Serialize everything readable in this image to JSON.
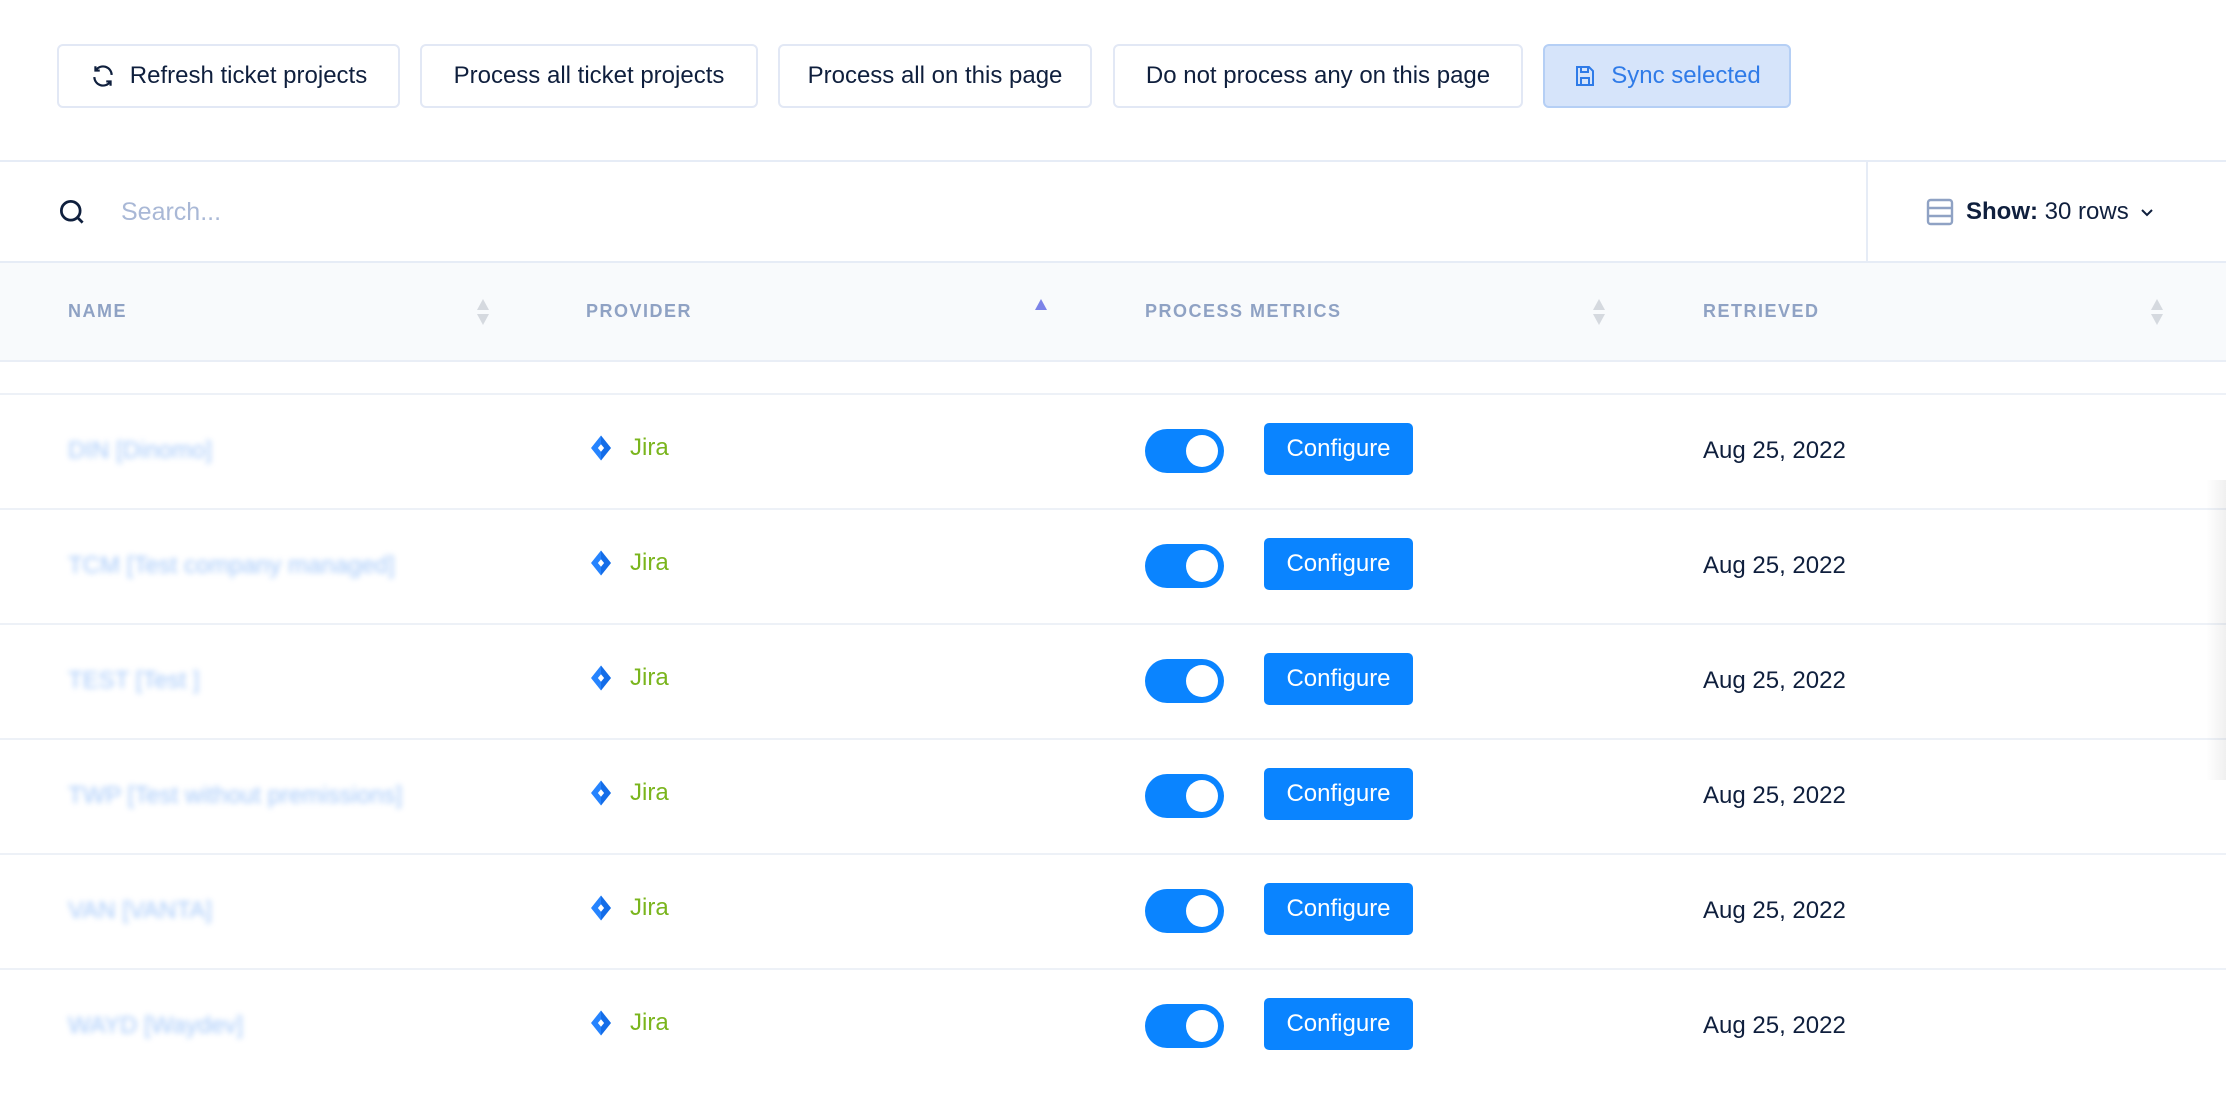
{
  "toolbar": {
    "refresh_label": "Refresh ticket projects",
    "process_all_label": "Process all ticket projects",
    "process_page_label": "Process all on this page",
    "process_none_label": "Do not process any on this page",
    "sync_label": "Sync selected"
  },
  "search": {
    "placeholder": "Search..."
  },
  "show": {
    "label": "Show:",
    "value": "30 rows"
  },
  "columns": [
    {
      "label": "NAME",
      "sort": "none"
    },
    {
      "label": "PROVIDER",
      "sort": "ascending"
    },
    {
      "label": "PROCESS METRICS",
      "sort": "none"
    },
    {
      "label": "RETRIEVED",
      "sort": "none"
    }
  ],
  "rows": [
    {
      "name": "DIN [Dinomo]",
      "provider": "Jira",
      "process_metrics": true,
      "configure": "Configure",
      "retrieved": "Aug 25, 2022"
    },
    {
      "name": "TCM [Test company managed]",
      "provider": "Jira",
      "process_metrics": true,
      "configure": "Configure",
      "retrieved": "Aug 25, 2022"
    },
    {
      "name": "TEST [Test ]",
      "provider": "Jira",
      "process_metrics": true,
      "configure": "Configure",
      "retrieved": "Aug 25, 2022"
    },
    {
      "name": "TWP [Test without premissions]",
      "provider": "Jira",
      "process_metrics": true,
      "configure": "Configure",
      "retrieved": "Aug 25, 2022"
    },
    {
      "name": "VAN [VANTA]",
      "provider": "Jira",
      "process_metrics": true,
      "configure": "Configure",
      "retrieved": "Aug 25, 2022"
    },
    {
      "name": "WAYD [Waydev]",
      "provider": "Jira",
      "process_metrics": true,
      "configure": "Configure",
      "retrieved": "Aug 25, 2022"
    }
  ],
  "colors": {
    "accent": "#0a84ff",
    "jira_text": "#7ab51d",
    "header_text": "#8fa2c4",
    "sort_active": "#7c83e8"
  }
}
